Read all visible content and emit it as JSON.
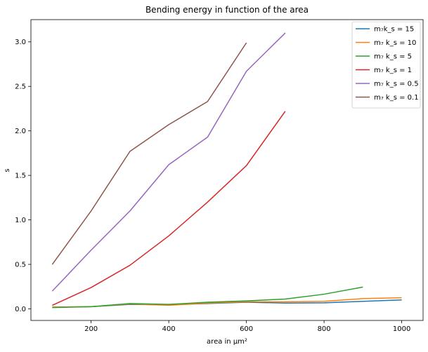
{
  "chart_data": {
    "type": "line",
    "title": "Bending energy in function of the area",
    "xlabel": "area in μm²",
    "ylabel": "s",
    "xlim": [
      45,
      1055
    ],
    "ylim": [
      -0.13,
      3.25
    ],
    "xticks": [
      200,
      400,
      600,
      800,
      1000
    ],
    "yticks": [
      0.0,
      0.5,
      1.0,
      1.5,
      2.0,
      2.5,
      3.0
    ],
    "xtick_labels": [
      "200",
      "400",
      "600",
      "800",
      "1000"
    ],
    "ytick_labels": [
      "0.0",
      "0.5",
      "1.0",
      "1.5",
      "2.0",
      "2.5",
      "3.0"
    ],
    "grid": false,
    "legend_position": "top-right",
    "series": [
      {
        "name": "m₇k_s = 15",
        "color": "#1f77b4",
        "x": [
          100,
          200,
          300,
          400,
          500,
          600,
          700,
          800,
          900,
          1000
        ],
        "y": [
          0.02,
          0.025,
          0.05,
          0.045,
          0.06,
          0.075,
          0.065,
          0.068,
          0.085,
          0.1
        ]
      },
      {
        "name": "m₇ k_s = 10",
        "color": "#ff7f0e",
        "x": [
          100,
          200,
          300,
          400,
          500,
          600,
          700,
          800,
          900,
          1000
        ],
        "y": [
          0.02,
          0.025,
          0.055,
          0.04,
          0.065,
          0.08,
          0.08,
          0.085,
          0.115,
          0.125
        ]
      },
      {
        "name": "m₇ k_s = 5",
        "color": "#2ca02c",
        "x": [
          100,
          200,
          300,
          400,
          500,
          600,
          700,
          800,
          900
        ],
        "y": [
          0.015,
          0.025,
          0.06,
          0.05,
          0.075,
          0.09,
          0.11,
          0.165,
          0.245
        ]
      },
      {
        "name": "m₇ k_s = 1",
        "color": "#d62728",
        "x": [
          100,
          200,
          300,
          400,
          500,
          600,
          700
        ],
        "y": [
          0.04,
          0.24,
          0.49,
          0.82,
          1.2,
          1.61,
          2.22
        ]
      },
      {
        "name": "m₇  k_s = 0.5",
        "color": "#9467bd",
        "x": [
          100,
          200,
          300,
          400,
          500,
          600,
          700
        ],
        "y": [
          0.2,
          0.66,
          1.1,
          1.62,
          1.93,
          2.67,
          3.1
        ]
      },
      {
        "name": "m₇ k_s = 0.1",
        "color": "#8c564b",
        "x": [
          100,
          200,
          300,
          400,
          500,
          600
        ],
        "y": [
          0.5,
          1.1,
          1.77,
          2.07,
          2.33,
          2.99
        ]
      }
    ]
  }
}
